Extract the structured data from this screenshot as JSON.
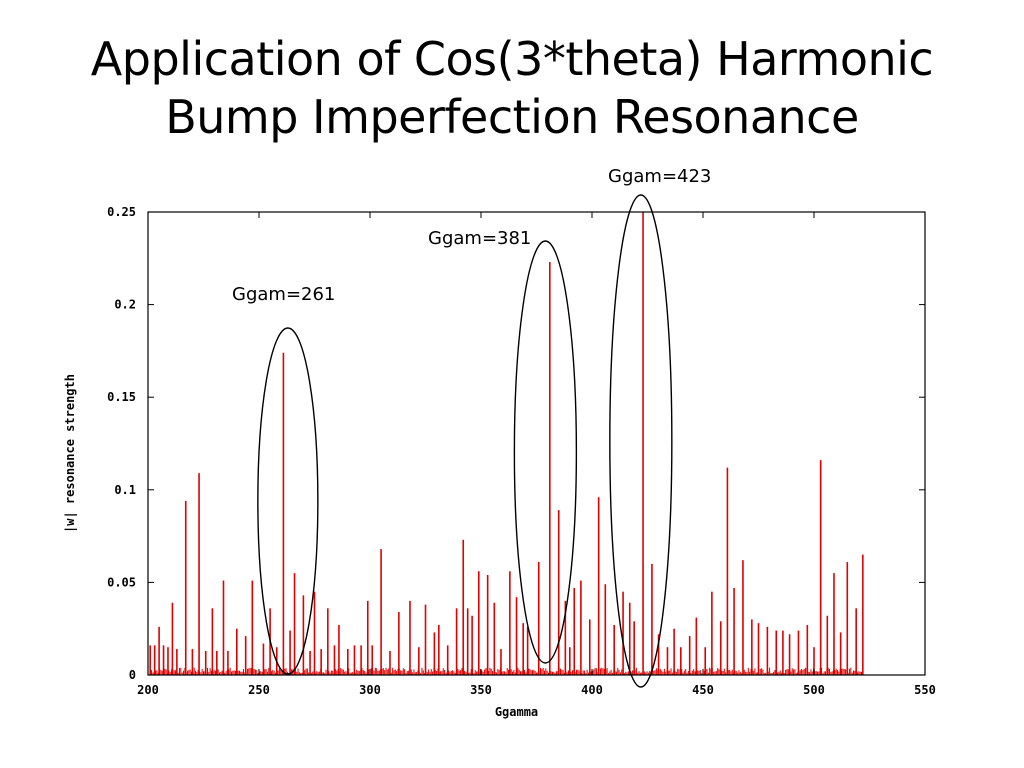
{
  "slide": {
    "title_line1": "Application of Cos(3*theta) Harmonic",
    "title_line2": "Bump Imperfection Resonance"
  },
  "annotations": {
    "a261": "Ggam=261",
    "a381": "Ggam=381",
    "a423": "Ggam=423"
  },
  "colors": {
    "series": "#e00000",
    "axis": "#000000",
    "ellipse": "#000000"
  },
  "chart_data": {
    "type": "bar",
    "title": "",
    "xlabel": "Ggamma",
    "ylabel": "|w| resonance strength",
    "xlim": [
      200,
      550
    ],
    "ylim": [
      0,
      0.25
    ],
    "xticks": [
      200,
      250,
      300,
      350,
      400,
      450,
      500,
      550
    ],
    "yticks": [
      0,
      0.05,
      0.1,
      0.15,
      0.2,
      0.25
    ],
    "xtick_labels": [
      "200",
      "250",
      "300",
      "350",
      "400",
      "450",
      "500",
      "550"
    ],
    "ytick_labels": [
      "0",
      "0.05",
      "0.1",
      "0.15",
      "0.2",
      "0.25"
    ],
    "grid": false,
    "series": [
      {
        "name": "resonance strength",
        "x": [
          200,
          201,
          203,
          205,
          207,
          209,
          211,
          213,
          217,
          220,
          223,
          226,
          229,
          231,
          234,
          236,
          240,
          244,
          247,
          252,
          255,
          258,
          261,
          264,
          266,
          270,
          273,
          275,
          278,
          281,
          284,
          286,
          290,
          293,
          296,
          299,
          301,
          305,
          309,
          313,
          318,
          322,
          325,
          329,
          331,
          335,
          339,
          342,
          344,
          346,
          349,
          353,
          356,
          359,
          363,
          366,
          369,
          371,
          376,
          381,
          385,
          388,
          390,
          392,
          395,
          399,
          403,
          406,
          410,
          414,
          417,
          419,
          423,
          427,
          430,
          434,
          437,
          440,
          444,
          447,
          451,
          454,
          458,
          461,
          464,
          468,
          472,
          475,
          479,
          483,
          486,
          489,
          493,
          497,
          500,
          503,
          506,
          509,
          512,
          515,
          519,
          522
        ],
        "values": [
          0.0,
          0.016,
          0.016,
          0.026,
          0.016,
          0.015,
          0.039,
          0.014,
          0.094,
          0.014,
          0.109,
          0.013,
          0.036,
          0.013,
          0.051,
          0.013,
          0.025,
          0.021,
          0.051,
          0.017,
          0.036,
          0.015,
          0.174,
          0.024,
          0.055,
          0.043,
          0.013,
          0.045,
          0.014,
          0.036,
          0.016,
          0.027,
          0.014,
          0.016,
          0.016,
          0.04,
          0.016,
          0.068,
          0.013,
          0.034,
          0.04,
          0.015,
          0.038,
          0.023,
          0.027,
          0.016,
          0.036,
          0.073,
          0.036,
          0.032,
          0.056,
          0.054,
          0.039,
          0.014,
          0.056,
          0.042,
          0.028,
          0.026,
          0.061,
          0.223,
          0.089,
          0.04,
          0.015,
          0.047,
          0.051,
          0.03,
          0.096,
          0.049,
          0.027,
          0.045,
          0.039,
          0.029,
          0.25,
          0.06,
          0.022,
          0.015,
          0.025,
          0.015,
          0.021,
          0.031,
          0.015,
          0.045,
          0.029,
          0.112,
          0.047,
          0.062,
          0.03,
          0.028,
          0.026,
          0.024,
          0.024,
          0.022,
          0.024,
          0.027,
          0.015,
          0.116,
          0.032,
          0.055,
          0.023,
          0.061,
          0.036,
          0.065
        ]
      }
    ]
  }
}
